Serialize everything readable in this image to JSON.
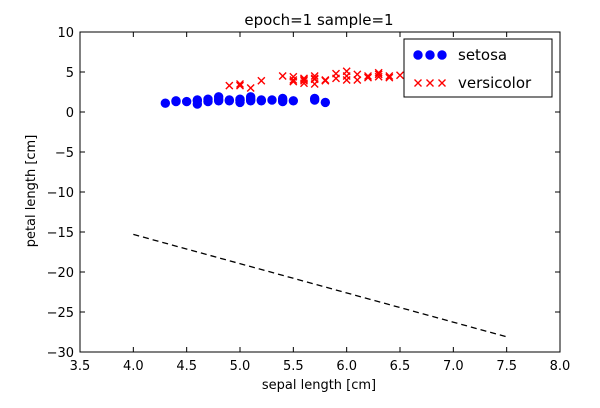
{
  "chart_data": {
    "type": "scatter",
    "title": "epoch=1  sample=1",
    "xlabel": "sepal length [cm]",
    "ylabel": "petal length [cm]",
    "xlim": [
      3.5,
      8.0
    ],
    "ylim": [
      -30,
      10
    ],
    "xticks": [
      3.5,
      4.0,
      4.5,
      5.0,
      5.5,
      6.0,
      6.5,
      7.0,
      7.5,
      8.0
    ],
    "yticks": [
      10,
      5,
      0,
      -5,
      -10,
      -15,
      -20,
      -25,
      -30
    ],
    "xtick_labels": [
      "3.5",
      "4.0",
      "4.5",
      "5.0",
      "5.5",
      "6.0",
      "6.5",
      "7.0",
      "7.5",
      "8.0"
    ],
    "ytick_labels": [
      "10",
      "5",
      "0",
      "−5",
      "−10",
      "−15",
      "−20",
      "−25",
      "−30"
    ],
    "grid": false,
    "legend_position": "top-right",
    "series": [
      {
        "name": "setosa",
        "marker": "circle",
        "color": "#0000ff",
        "points": [
          [
            4.3,
            1.1
          ],
          [
            4.4,
            1.3
          ],
          [
            4.4,
            1.4
          ],
          [
            4.5,
            1.3
          ],
          [
            4.6,
            1.0
          ],
          [
            4.6,
            1.4
          ],
          [
            4.6,
            1.5
          ],
          [
            4.7,
            1.3
          ],
          [
            4.7,
            1.6
          ],
          [
            4.8,
            1.4
          ],
          [
            4.8,
            1.6
          ],
          [
            4.8,
            1.9
          ],
          [
            4.9,
            1.4
          ],
          [
            4.9,
            1.5
          ],
          [
            5.0,
            1.2
          ],
          [
            5.0,
            1.4
          ],
          [
            5.0,
            1.5
          ],
          [
            5.0,
            1.6
          ],
          [
            5.1,
            1.4
          ],
          [
            5.1,
            1.5
          ],
          [
            5.1,
            1.7
          ],
          [
            5.1,
            1.9
          ],
          [
            5.2,
            1.4
          ],
          [
            5.2,
            1.5
          ],
          [
            5.3,
            1.5
          ],
          [
            5.4,
            1.3
          ],
          [
            5.4,
            1.5
          ],
          [
            5.4,
            1.7
          ],
          [
            5.5,
            1.4
          ],
          [
            5.7,
            1.5
          ],
          [
            5.7,
            1.7
          ],
          [
            5.8,
            1.2
          ]
        ]
      },
      {
        "name": "versicolor",
        "marker": "x",
        "color": "#ff0000",
        "points": [
          [
            4.9,
            3.3
          ],
          [
            5.0,
            3.3
          ],
          [
            5.0,
            3.5
          ],
          [
            5.1,
            3.0
          ],
          [
            5.2,
            3.9
          ],
          [
            5.4,
            4.5
          ],
          [
            5.5,
            3.8
          ],
          [
            5.5,
            4.0
          ],
          [
            5.5,
            4.4
          ],
          [
            5.6,
            3.6
          ],
          [
            5.6,
            3.9
          ],
          [
            5.6,
            4.1
          ],
          [
            5.6,
            4.2
          ],
          [
            5.7,
            3.5
          ],
          [
            5.7,
            4.1
          ],
          [
            5.7,
            4.2
          ],
          [
            5.7,
            4.5
          ],
          [
            5.8,
            3.9
          ],
          [
            5.8,
            4.0
          ],
          [
            5.9,
            4.2
          ],
          [
            5.9,
            4.8
          ],
          [
            6.0,
            4.0
          ],
          [
            6.0,
            4.5
          ],
          [
            6.0,
            5.1
          ],
          [
            6.1,
            4.0
          ],
          [
            6.1,
            4.7
          ],
          [
            6.2,
            4.3
          ],
          [
            6.2,
            4.5
          ],
          [
            6.3,
            4.4
          ],
          [
            6.3,
            4.7
          ],
          [
            6.3,
            4.9
          ],
          [
            6.4,
            4.3
          ],
          [
            6.4,
            4.5
          ],
          [
            6.5,
            4.6
          ]
        ]
      }
    ],
    "lines": [
      {
        "name": "decision-boundary",
        "style": "dashed",
        "color": "#000000",
        "points": [
          [
            4.0,
            -15.3
          ],
          [
            7.5,
            -28.1
          ]
        ]
      }
    ]
  }
}
